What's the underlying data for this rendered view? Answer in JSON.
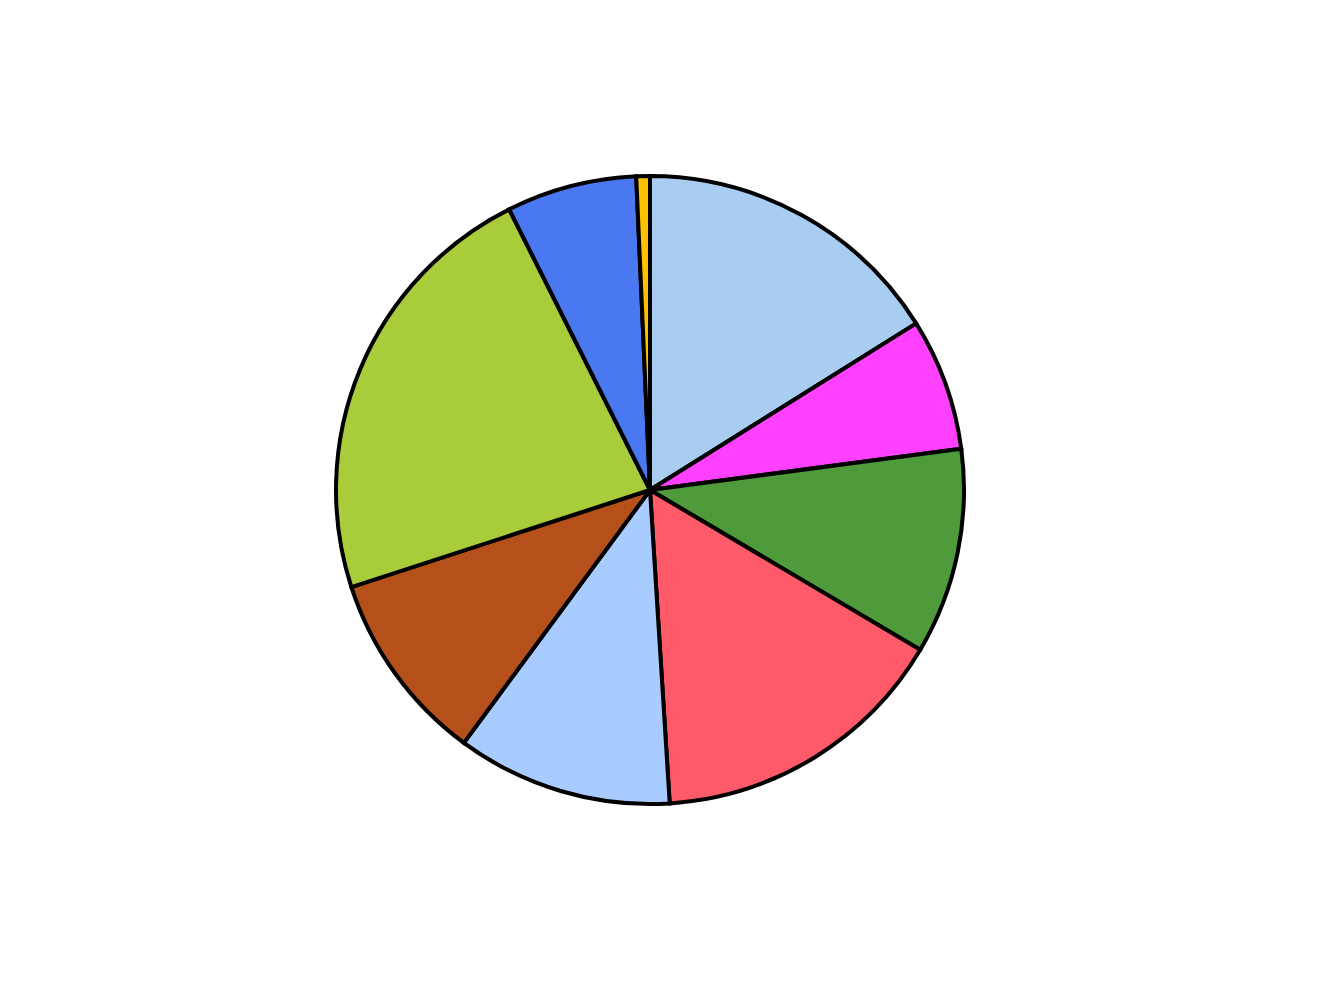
{
  "chart_data": {
    "type": "pie",
    "categories": [
      null,
      null,
      null,
      null,
      null,
      null,
      null,
      null,
      null
    ],
    "values": [
      16.1,
      6.8,
      10.6,
      15.5,
      11.1,
      9.9,
      22.6,
      6.7,
      0.7
    ],
    "colors": [
      "#a9cdf0",
      "#ff40ff",
      "#4f9a3a",
      "#ff5a6a",
      "#a8ccff",
      "#b5501a",
      "#a8cc3a",
      "#4a78f0",
      "#ffc000"
    ],
    "legend": false
  }
}
